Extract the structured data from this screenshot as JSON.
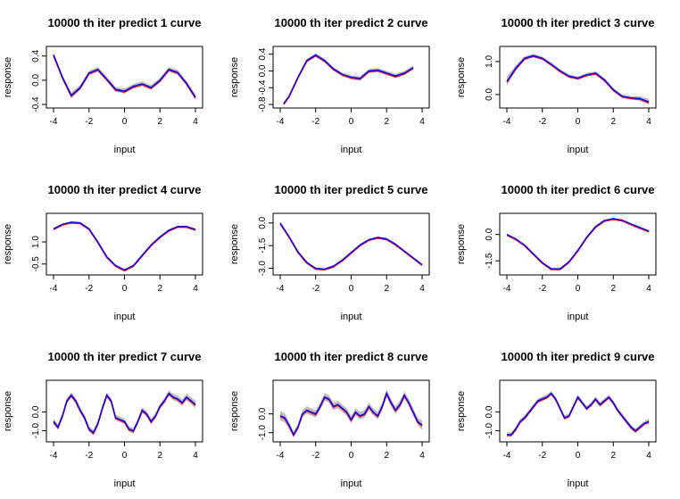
{
  "colors": {
    "band": "#bebebe",
    "truth": "#ff0000",
    "predicted": "#0000ff",
    "frame": "#000000"
  },
  "chart_data": [
    {
      "type": "line",
      "title": "10000 th iter  predict 1 curve",
      "xlabel": "input",
      "ylabel": "response",
      "xlim": [
        -4,
        4
      ],
      "ylim": [
        -0.4,
        0.5
      ],
      "xticks": [
        "-4",
        "-2",
        "0",
        "2",
        "4"
      ],
      "yticks": [
        "-0.4",
        "0.0",
        "0.4"
      ],
      "grid": false,
      "series": [
        {
          "x": [
            -4,
            -3.5,
            -3,
            -2.5,
            -2,
            -1.5,
            -1,
            -0.5,
            0,
            0.5,
            1,
            1.5,
            2,
            2.5,
            3,
            3.5,
            4
          ],
          "y": [
            0.42,
            0.05,
            -0.25,
            -0.12,
            0.12,
            0.18,
            0.02,
            -0.15,
            -0.18,
            -0.1,
            -0.06,
            -0.12,
            0.0,
            0.18,
            0.13,
            -0.05,
            -0.28
          ],
          "band": [
            0.04,
            0.04,
            0.05,
            0.04,
            0.04,
            0.04,
            0.04,
            0.04,
            0.04,
            0.04,
            0.04,
            0.04,
            0.04,
            0.04,
            0.04,
            0.04,
            0.05
          ]
        }
      ]
    },
    {
      "type": "line",
      "title": "10000 th iter  predict 2 curve",
      "xlabel": "input",
      "ylabel": "response",
      "xlim": [
        -4,
        4
      ],
      "ylim": [
        -0.8,
        0.5
      ],
      "xticks": [
        "-4",
        "-2",
        "0",
        "2",
        "4"
      ],
      "yticks": [
        "-0.8",
        "-0.4",
        "0.0",
        "0.4"
      ],
      "grid": false,
      "series": [
        {
          "x": [
            -3.8,
            -3.5,
            -3,
            -2.5,
            -2,
            -1.5,
            -1,
            -0.5,
            0,
            0.5,
            1,
            1.5,
            2,
            2.5,
            3,
            3.5
          ],
          "y": [
            -0.78,
            -0.6,
            -0.15,
            0.25,
            0.38,
            0.25,
            0.05,
            -0.08,
            -0.15,
            -0.18,
            0.0,
            0.02,
            -0.05,
            -0.12,
            -0.05,
            0.08
          ],
          "band": [
            0.03,
            0.03,
            0.03,
            0.04,
            0.04,
            0.04,
            0.04,
            0.04,
            0.05,
            0.05,
            0.05,
            0.05,
            0.05,
            0.05,
            0.05,
            0.05
          ]
        }
      ]
    },
    {
      "type": "line",
      "title": "10000 th iter  predict 3 curve",
      "xlabel": "input",
      "ylabel": "response",
      "xlim": [
        -4,
        4
      ],
      "ylim": [
        -0.3,
        1.35
      ],
      "xticks": [
        "-4",
        "-2",
        "0",
        "2",
        "4"
      ],
      "yticks": [
        "0.0",
        "1.0"
      ],
      "grid": false,
      "series": [
        {
          "x": [
            -4,
            -3.5,
            -3,
            -2.5,
            -2,
            -1.5,
            -1,
            -0.5,
            0,
            0.5,
            1,
            1.5,
            2,
            2.5,
            3,
            3.5,
            4
          ],
          "y": [
            0.4,
            0.8,
            1.1,
            1.18,
            1.1,
            0.92,
            0.72,
            0.56,
            0.5,
            0.6,
            0.65,
            0.45,
            0.15,
            -0.05,
            -0.1,
            -0.12,
            -0.22
          ],
          "band": [
            0.14,
            0.09,
            0.06,
            0.05,
            0.05,
            0.05,
            0.05,
            0.05,
            0.05,
            0.05,
            0.05,
            0.05,
            0.05,
            0.05,
            0.05,
            0.07,
            0.09
          ]
        }
      ]
    },
    {
      "type": "line",
      "title": "10000 th iter  predict 4 curve",
      "xlabel": "input",
      "ylabel": "response",
      "xlim": [
        -4,
        4
      ],
      "ylim": [
        -1.0,
        2.7
      ],
      "xticks": [
        "-4",
        "-2",
        "0",
        "2",
        "4"
      ],
      "yticks": [
        "-0.5",
        "1.0"
      ],
      "grid": false,
      "series": [
        {
          "x": [
            -4,
            -3.5,
            -3,
            -2.5,
            -2,
            -1.5,
            -1,
            -0.5,
            0,
            0.5,
            1,
            1.5,
            2,
            2.5,
            3,
            3.5,
            4
          ],
          "y": [
            1.9,
            2.2,
            2.35,
            2.3,
            1.9,
            1.0,
            0.0,
            -0.6,
            -0.9,
            -0.6,
            0.1,
            0.8,
            1.35,
            1.8,
            2.05,
            2.05,
            1.85
          ],
          "band": [
            0.05,
            0.04,
            0.04,
            0.04,
            0.04,
            0.04,
            0.04,
            0.04,
            0.04,
            0.04,
            0.04,
            0.04,
            0.04,
            0.04,
            0.05,
            0.06,
            0.08
          ]
        }
      ]
    },
    {
      "type": "line",
      "title": "10000 th iter  predict 5 curve",
      "xlabel": "input",
      "ylabel": "response",
      "xlim": [
        -4,
        4
      ],
      "ylim": [
        -3.2,
        0.4
      ],
      "xticks": [
        "-4",
        "-2",
        "0",
        "2",
        "4"
      ],
      "yticks": [
        "-3.0",
        "-1.5",
        "0.0"
      ],
      "grid": false,
      "series": [
        {
          "x": [
            -4,
            -3.5,
            -3,
            -2.5,
            -2,
            -1.5,
            -1,
            -0.5,
            0,
            0.5,
            1,
            1.5,
            2,
            2.5,
            3,
            3.5,
            4
          ],
          "y": [
            0.0,
            -0.9,
            -1.9,
            -2.6,
            -3.0,
            -3.05,
            -2.85,
            -2.45,
            -1.95,
            -1.45,
            -1.1,
            -0.95,
            -1.05,
            -1.4,
            -1.85,
            -2.3,
            -2.75
          ],
          "band": [
            0.04,
            0.03,
            0.03,
            0.03,
            0.03,
            0.03,
            0.03,
            0.03,
            0.03,
            0.03,
            0.03,
            0.03,
            0.03,
            0.03,
            0.03,
            0.03,
            0.04
          ]
        }
      ]
    },
    {
      "type": "line",
      "title": "10000 th iter  predict 6 curve",
      "xlabel": "input",
      "ylabel": "response",
      "xlim": [
        -4,
        4
      ],
      "ylim": [
        -2.1,
        1.0
      ],
      "xticks": [
        "-4",
        "-2",
        "0",
        "2",
        "4"
      ],
      "yticks": [
        "-1.5",
        "0.0"
      ],
      "grid": false,
      "series": [
        {
          "x": [
            -4,
            -3.5,
            -3,
            -2.5,
            -2,
            -1.5,
            -1,
            -0.5,
            0,
            0.5,
            1,
            1.5,
            2,
            2.5,
            3,
            3.5,
            4
          ],
          "y": [
            0.0,
            -0.25,
            -0.6,
            -1.1,
            -1.6,
            -1.95,
            -1.95,
            -1.55,
            -0.9,
            -0.15,
            0.45,
            0.8,
            0.9,
            0.82,
            0.6,
            0.4,
            0.2
          ],
          "band": [
            0.04,
            0.03,
            0.03,
            0.03,
            0.03,
            0.03,
            0.03,
            0.03,
            0.03,
            0.03,
            0.03,
            0.03,
            0.03,
            0.03,
            0.03,
            0.03,
            0.04
          ]
        }
      ]
    },
    {
      "type": "line",
      "title": "10000 th iter  predict 7 curve",
      "xlabel": "input",
      "ylabel": "response",
      "xlim": [
        -4,
        4
      ],
      "ylim": [
        -1.4,
        1.5
      ],
      "xticks": [
        "-4",
        "-2",
        "0",
        "2",
        "4"
      ],
      "yticks": [
        "-1.0",
        "0.0"
      ],
      "grid": false,
      "series": [
        {
          "x": [
            -4,
            -3.75,
            -3.5,
            -3.25,
            -3,
            -2.75,
            -2.5,
            -2.25,
            -2,
            -1.75,
            -1.5,
            -1.25,
            -1,
            -0.75,
            -0.5,
            -0.25,
            0,
            0.25,
            0.5,
            0.75,
            1,
            1.25,
            1.5,
            1.75,
            2,
            2.25,
            2.5,
            2.75,
            3,
            3.25,
            3.5,
            3.75,
            4
          ],
          "y": [
            -0.5,
            -0.8,
            -0.2,
            0.6,
            0.9,
            0.6,
            0.1,
            -0.3,
            -0.9,
            -1.1,
            -0.6,
            0.2,
            0.9,
            0.6,
            -0.3,
            -0.4,
            -0.5,
            -0.9,
            -1.0,
            -0.5,
            0.1,
            -0.1,
            -0.5,
            -0.2,
            0.3,
            0.6,
            1.0,
            0.8,
            0.7,
            0.5,
            0.8,
            0.6,
            0.4
          ],
          "band": [
            0.15,
            0.15,
            0.15,
            0.15,
            0.15,
            0.15,
            0.15,
            0.15,
            0.15,
            0.15,
            0.15,
            0.15,
            0.15,
            0.15,
            0.15,
            0.15,
            0.15,
            0.15,
            0.15,
            0.15,
            0.15,
            0.15,
            0.15,
            0.15,
            0.15,
            0.15,
            0.15,
            0.18,
            0.18,
            0.18,
            0.18,
            0.18,
            0.2
          ]
        }
      ]
    },
    {
      "type": "line",
      "title": "10000 th iter  predict 8 curve",
      "xlabel": "input",
      "ylabel": "response",
      "xlim": [
        -4,
        4
      ],
      "ylim": [
        -1.3,
        1.6
      ],
      "xticks": [
        "-4",
        "-2",
        "0",
        "2",
        "4"
      ],
      "yticks": [
        "-1.0",
        "0.0"
      ],
      "grid": false,
      "series": [
        {
          "x": [
            -4,
            -3.75,
            -3.5,
            -3.25,
            -3,
            -2.75,
            -2.5,
            -2.25,
            -2,
            -1.75,
            -1.5,
            -1.25,
            -1,
            -0.75,
            -0.5,
            -0.25,
            0,
            0.25,
            0.5,
            0.75,
            1,
            1.25,
            1.5,
            1.75,
            2,
            2.25,
            2.5,
            2.75,
            3,
            3.25,
            3.5,
            3.75,
            4
          ],
          "y": [
            -0.1,
            -0.2,
            -0.6,
            -1.1,
            -0.7,
            0.0,
            0.2,
            0.1,
            0.0,
            0.4,
            0.9,
            0.8,
            0.4,
            0.5,
            0.3,
            0.1,
            -0.3,
            0.1,
            -0.1,
            0.0,
            0.4,
            0.1,
            -0.1,
            0.4,
            1.1,
            0.6,
            0.2,
            0.5,
            1.0,
            0.6,
            0.1,
            -0.4,
            -0.6
          ],
          "band": [
            0.25,
            0.25,
            0.2,
            0.15,
            0.15,
            0.2,
            0.2,
            0.2,
            0.2,
            0.2,
            0.2,
            0.2,
            0.2,
            0.2,
            0.2,
            0.2,
            0.2,
            0.2,
            0.2,
            0.2,
            0.2,
            0.2,
            0.2,
            0.2,
            0.2,
            0.2,
            0.2,
            0.2,
            0.2,
            0.2,
            0.2,
            0.2,
            0.25
          ]
        }
      ]
    },
    {
      "type": "line",
      "title": "10000 th iter  predict 9 curve",
      "xlabel": "input",
      "ylabel": "response",
      "xlim": [
        -4,
        4
      ],
      "ylim": [
        -1.4,
        1.5
      ],
      "xticks": [
        "-4",
        "-2",
        "0",
        "2",
        "4"
      ],
      "yticks": [
        "-1.0",
        "0.0"
      ],
      "grid": false,
      "series": [
        {
          "x": [
            -4,
            -3.75,
            -3.5,
            -3.25,
            -3,
            -2.75,
            -2.5,
            -2.25,
            -2,
            -1.75,
            -1.5,
            -1.25,
            -1,
            -0.75,
            -0.5,
            -0.25,
            0,
            0.25,
            0.5,
            0.75,
            1,
            1.25,
            1.5,
            1.75,
            2,
            2.25,
            2.5,
            2.75,
            3,
            3.25,
            3.5,
            3.75,
            4
          ],
          "y": [
            -1.2,
            -1.2,
            -0.9,
            -0.5,
            -0.3,
            0.0,
            0.3,
            0.6,
            0.7,
            0.8,
            1.0,
            0.7,
            0.2,
            -0.3,
            -0.2,
            0.3,
            0.8,
            0.5,
            0.2,
            0.4,
            0.7,
            0.4,
            0.6,
            0.8,
            0.5,
            0.1,
            -0.2,
            -0.5,
            -0.8,
            -1.0,
            -0.8,
            -0.6,
            -0.5
          ],
          "band": [
            0.12,
            0.12,
            0.12,
            0.12,
            0.12,
            0.12,
            0.12,
            0.12,
            0.12,
            0.12,
            0.12,
            0.12,
            0.12,
            0.12,
            0.12,
            0.12,
            0.12,
            0.12,
            0.12,
            0.12,
            0.12,
            0.12,
            0.12,
            0.12,
            0.12,
            0.12,
            0.12,
            0.12,
            0.12,
            0.12,
            0.12,
            0.12,
            0.15
          ]
        }
      ]
    }
  ]
}
